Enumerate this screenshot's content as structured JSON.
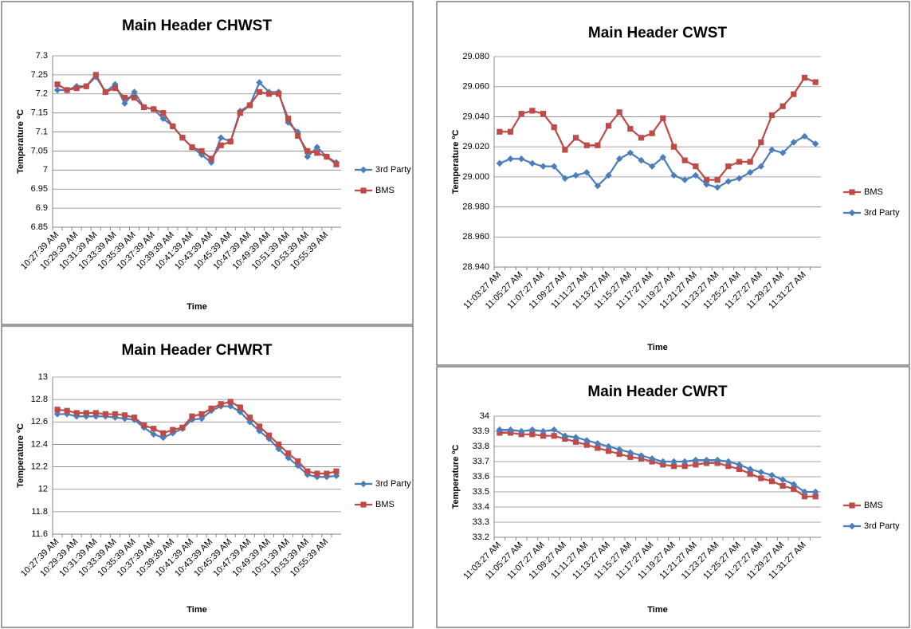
{
  "chart_data": [
    {
      "type": "line",
      "title": "Main Header CHWST",
      "x_label": "Time",
      "y_label": "Temperature ºC",
      "categories": [
        "10:27:39 AM",
        null,
        "10:29:39 AM",
        null,
        "10:31:39 AM",
        null,
        "10:33:39 AM",
        null,
        "10:35:39 AM",
        null,
        "10:37:39 AM",
        null,
        "10:39:39 AM",
        null,
        "10:41:39 AM",
        null,
        "10:43:39 AM",
        null,
        "10:45:39 AM",
        null,
        "10:47:39 AM",
        null,
        "10:49:39 AM",
        null,
        "10:51:39 AM",
        null,
        "10:53:39 AM",
        null,
        "10:55:39 AM",
        null
      ],
      "series": [
        {
          "name": "3rd Party",
          "color": "#4a7ebb",
          "marker": "diamond",
          "values": [
            7.21,
            7.21,
            7.22,
            7.22,
            7.245,
            7.205,
            7.225,
            7.175,
            7.205,
            7.165,
            7.16,
            7.135,
            7.115,
            7.085,
            7.06,
            7.04,
            7.02,
            7.085,
            7.075,
            7.155,
            7.17,
            7.23,
            7.205,
            7.205,
            7.125,
            7.1,
            7.035,
            7.06,
            7.035,
            7.02
          ]
        },
        {
          "name": "BMS",
          "color": "#be4b48",
          "marker": "square",
          "values": [
            7.225,
            7.21,
            7.215,
            7.22,
            7.25,
            7.205,
            7.215,
            7.19,
            7.19,
            7.165,
            7.16,
            7.15,
            7.115,
            7.085,
            7.06,
            7.05,
            7.03,
            7.065,
            7.075,
            7.15,
            7.17,
            7.205,
            7.2,
            7.2,
            7.135,
            7.09,
            7.05,
            7.045,
            7.035,
            7.015
          ]
        }
      ],
      "ylim": [
        6.85,
        7.3
      ],
      "yticks": [
        6.85,
        6.9,
        6.95,
        7,
        7.05,
        7.1,
        7.15,
        7.2,
        7.25,
        7.3
      ],
      "grid": true,
      "legend": "right"
    },
    {
      "type": "line",
      "title": "Main Header CHWRT",
      "x_label": "Time",
      "y_label": "Temperature ºC",
      "categories": [
        "10:27:39 AM",
        null,
        "10:29:39 AM",
        null,
        "10:31:39 AM",
        null,
        "10:33:39 AM",
        null,
        "10:35:39 AM",
        null,
        "10:37:39 AM",
        null,
        "10:39:39 AM",
        null,
        "10:41:39 AM",
        null,
        "10:43:39 AM",
        null,
        "10:45:39 AM",
        null,
        "10:47:39 AM",
        null,
        "10:49:39 AM",
        null,
        "10:51:39 AM",
        null,
        "10:53:39 AM",
        null,
        "10:55:39 AM",
        null
      ],
      "series": [
        {
          "name": "3rd Party",
          "color": "#4a7ebb",
          "marker": "diamond",
          "values": [
            12.67,
            12.67,
            12.65,
            12.65,
            12.65,
            12.65,
            12.64,
            12.63,
            12.62,
            12.55,
            12.49,
            12.46,
            12.5,
            12.54,
            12.62,
            12.63,
            12.7,
            12.74,
            12.74,
            12.69,
            12.6,
            12.52,
            12.45,
            12.36,
            12.28,
            12.21,
            12.13,
            12.11,
            12.11,
            12.12
          ]
        },
        {
          "name": "BMS",
          "color": "#be4b48",
          "marker": "square",
          "values": [
            12.71,
            12.7,
            12.68,
            12.68,
            12.68,
            12.67,
            12.67,
            12.66,
            12.64,
            12.57,
            12.54,
            12.5,
            12.53,
            12.55,
            12.65,
            12.67,
            12.72,
            12.76,
            12.78,
            12.73,
            12.64,
            12.56,
            12.48,
            12.4,
            12.32,
            12.25,
            12.16,
            12.14,
            12.14,
            12.16
          ]
        }
      ],
      "ylim": [
        11.6,
        13
      ],
      "yticks": [
        11.6,
        11.8,
        12,
        12.2,
        12.4,
        12.6,
        12.8,
        13
      ],
      "grid": true,
      "legend": "right"
    },
    {
      "type": "line",
      "title": "Main Header CWST",
      "x_label": "Time",
      "y_label": "Temperature ºC",
      "categories": [
        "11:03:27 AM",
        null,
        "11:05:27 AM",
        null,
        "11:07:27 AM",
        null,
        "11:09:27 AM",
        null,
        "11:11:27 AM",
        null,
        "11:13:27 AM",
        null,
        "11:15:27 AM",
        null,
        "11:17:27 AM",
        null,
        "11:19:27 AM",
        null,
        "11:21:27 AM",
        null,
        "11:23:27 AM",
        null,
        "11:25:27 AM",
        null,
        "11:27:27 AM",
        null,
        "11:29:27 AM",
        null,
        "11:31:27 AM",
        null
      ],
      "series": [
        {
          "name": "BMS",
          "color": "#be4b48",
          "marker": "square",
          "values": [
            29.03,
            29.03,
            29.042,
            29.044,
            29.042,
            29.033,
            29.018,
            29.026,
            29.021,
            29.021,
            29.034,
            29.043,
            29.032,
            29.026,
            29.029,
            29.039,
            29.02,
            29.011,
            29.007,
            28.998,
            28.998,
            29.007,
            29.01,
            29.01,
            29.023,
            29.041,
            29.047,
            29.055,
            29.066,
            29.063
          ]
        },
        {
          "name": "3rd Party",
          "color": "#4a7ebb",
          "marker": "diamond",
          "values": [
            29.009,
            29.012,
            29.012,
            29.009,
            29.007,
            29.007,
            28.999,
            29.001,
            29.003,
            28.994,
            29.001,
            29.012,
            29.016,
            29.011,
            29.007,
            29.013,
            29.001,
            28.998,
            29.001,
            28.995,
            28.993,
            28.997,
            28.999,
            29.003,
            29.007,
            29.018,
            29.016,
            29.023,
            29.027,
            29.022
          ]
        }
      ],
      "ylim": [
        28.94,
        29.08
      ],
      "yticks": [
        {
          "value": 28.94,
          "label": "28.940"
        },
        {
          "value": 28.96,
          "label": "28.960"
        },
        {
          "value": 28.98,
          "label": "28.980"
        },
        {
          "value": 29,
          "label": "29.000"
        },
        {
          "value": 29.02,
          "label": "29.020"
        },
        {
          "value": 29.04,
          "label": "29.040"
        },
        {
          "value": 29.06,
          "label": "29.060"
        },
        {
          "value": 29.08,
          "label": "29.080"
        }
      ],
      "grid": true,
      "legend": "right"
    },
    {
      "type": "line",
      "title": "Main Header CWRT",
      "x_label": "Time",
      "y_label": "Temperature ºC",
      "categories": [
        "11:03:27 AM",
        null,
        "11:05:27 AM",
        null,
        "11:07:27 AM",
        null,
        "11:09:27 AM",
        null,
        "11:11:27 AM",
        null,
        "11:13:27 AM",
        null,
        "11:15:27 AM",
        null,
        "11:17:27 AM",
        null,
        "11:19:27 AM",
        null,
        "11:21:27 AM",
        null,
        "11:23:27 AM",
        null,
        "11:25:27 AM",
        null,
        "11:27:27 AM",
        null,
        "11:29:27 AM",
        null,
        "11:31:27 AM",
        null
      ],
      "series": [
        {
          "name": "BMS",
          "color": "#be4b48",
          "marker": "square",
          "values": [
            33.89,
            33.89,
            33.88,
            33.88,
            33.87,
            33.87,
            33.85,
            33.83,
            33.81,
            33.79,
            33.77,
            33.75,
            33.73,
            33.72,
            33.7,
            33.68,
            33.67,
            33.67,
            33.68,
            33.69,
            33.69,
            33.67,
            33.65,
            33.62,
            33.59,
            33.57,
            33.54,
            33.52,
            33.47,
            33.47
          ]
        },
        {
          "name": "3rd Party",
          "color": "#4a7ebb",
          "marker": "diamond",
          "values": [
            33.91,
            33.91,
            33.9,
            33.91,
            33.9,
            33.91,
            33.87,
            33.86,
            33.84,
            33.82,
            33.8,
            33.78,
            33.76,
            33.74,
            33.72,
            33.7,
            33.7,
            33.7,
            33.71,
            33.71,
            33.71,
            33.7,
            33.68,
            33.65,
            33.63,
            33.61,
            33.58,
            33.55,
            33.5,
            33.5
          ]
        }
      ],
      "ylim": [
        33.2,
        34
      ],
      "yticks": [
        33.2,
        33.3,
        33.4,
        33.5,
        33.6,
        33.7,
        33.8,
        33.9,
        34
      ],
      "grid": true,
      "legend": "right"
    }
  ]
}
